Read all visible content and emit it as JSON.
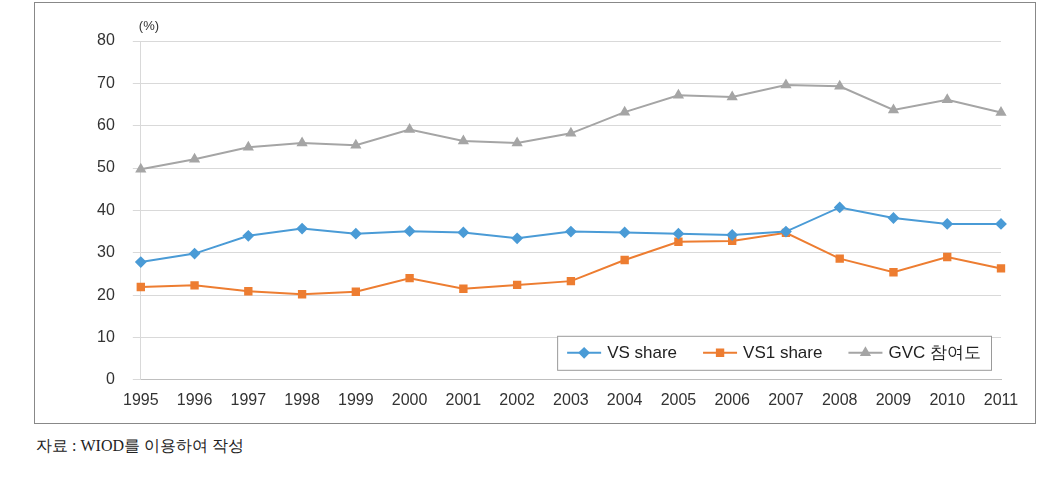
{
  "chart_data": {
    "type": "line",
    "y_label": "(%)",
    "source": "자료 : WIOD를 이용하여 작성",
    "categories": [
      "1995",
      "1996",
      "1997",
      "1998",
      "1999",
      "2000",
      "2001",
      "2002",
      "2003",
      "2004",
      "2005",
      "2006",
      "2007",
      "2008",
      "2009",
      "2010",
      "2011"
    ],
    "series": [
      {
        "name": "VS share",
        "color": "#4a9bd6",
        "marker": "diamond",
        "values": [
          27.8,
          29.8,
          34.0,
          35.7,
          34.5,
          35.1,
          34.8,
          33.4,
          35.0,
          34.8,
          34.5,
          34.2,
          35.0,
          40.7,
          38.2,
          36.8,
          36.8
        ]
      },
      {
        "name": "VS1 share",
        "color": "#ed7d31",
        "marker": "square",
        "values": [
          21.9,
          22.3,
          20.9,
          20.2,
          20.8,
          24.0,
          21.5,
          22.4,
          23.3,
          28.3,
          32.6,
          32.8,
          34.7,
          28.6,
          25.4,
          29.0,
          26.3
        ]
      },
      {
        "name": "GVC 참여도",
        "color": "#a5a5a5",
        "marker": "triangle",
        "values": [
          49.7,
          52.1,
          54.9,
          55.9,
          55.4,
          59.1,
          56.4,
          55.9,
          58.2,
          63.2,
          67.2,
          66.8,
          69.6,
          69.3,
          63.7,
          66.1,
          63.1
        ]
      }
    ],
    "ylim": [
      0,
      80
    ],
    "yticks": [
      0,
      10,
      20,
      30,
      40,
      50,
      60,
      70,
      80
    ],
    "grid": true,
    "legend": "lower right"
  }
}
